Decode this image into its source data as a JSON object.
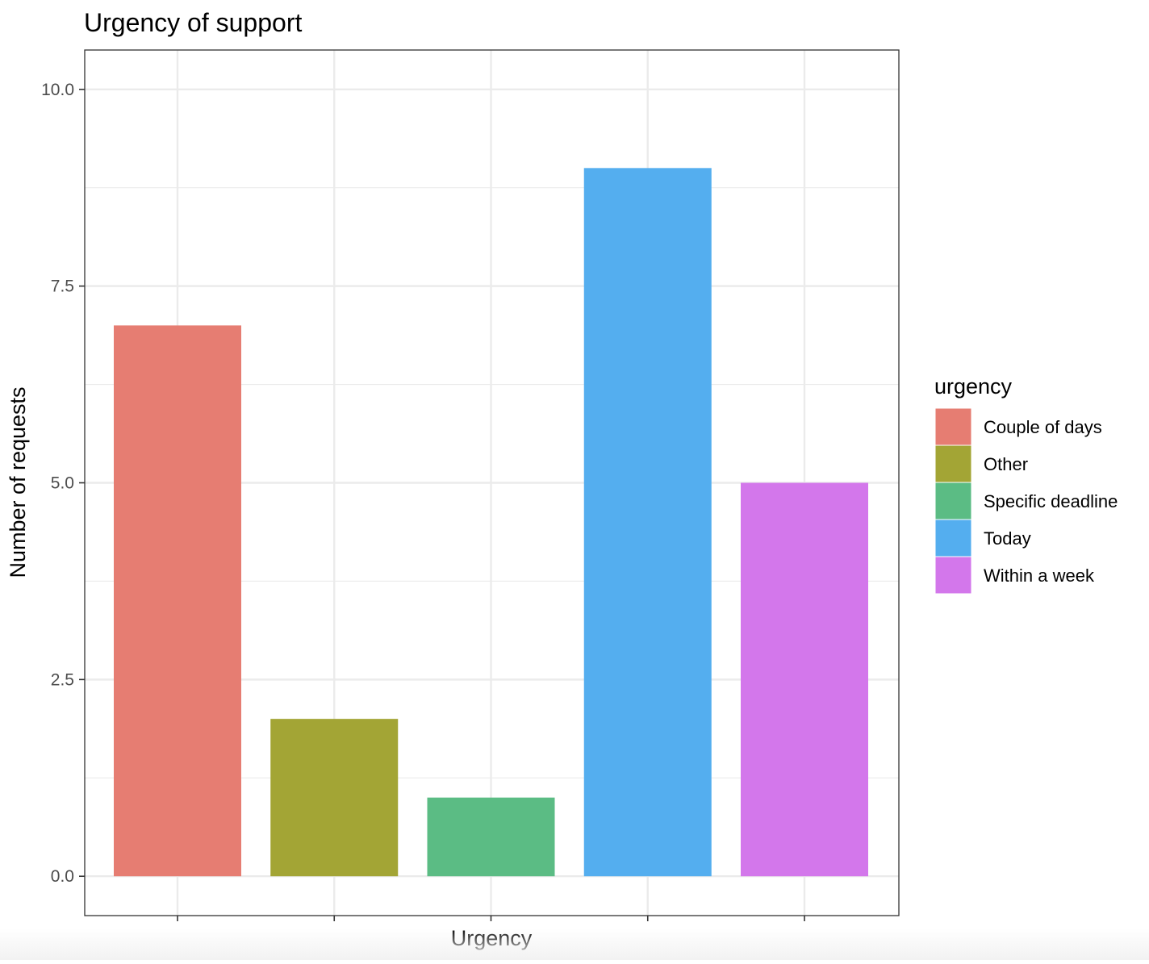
{
  "chart_data": {
    "type": "bar",
    "title": "Urgency of support",
    "xlabel": "Urgency",
    "ylabel": "Number of requests",
    "categories": [
      "Couple of days",
      "Other",
      "Specific deadline",
      "Today",
      "Within a week"
    ],
    "values": [
      7,
      2,
      1,
      9,
      5
    ],
    "colors": [
      "#E67D72",
      "#A3A535",
      "#5BBC84",
      "#54AEEF",
      "#D377EB"
    ],
    "ylim": [
      -0.5,
      10.5
    ],
    "yticks": [
      0.0,
      2.5,
      5.0,
      7.5,
      10.0
    ],
    "ytick_labels": [
      "0.0",
      "2.5",
      "5.0",
      "7.5",
      "10.0"
    ],
    "x_tick_labels_shown": false,
    "grid": true,
    "legend": {
      "title": "urgency",
      "placement": "right",
      "entries": [
        "Couple of days",
        "Other",
        "Specific deadline",
        "Today",
        "Within a week"
      ]
    }
  }
}
